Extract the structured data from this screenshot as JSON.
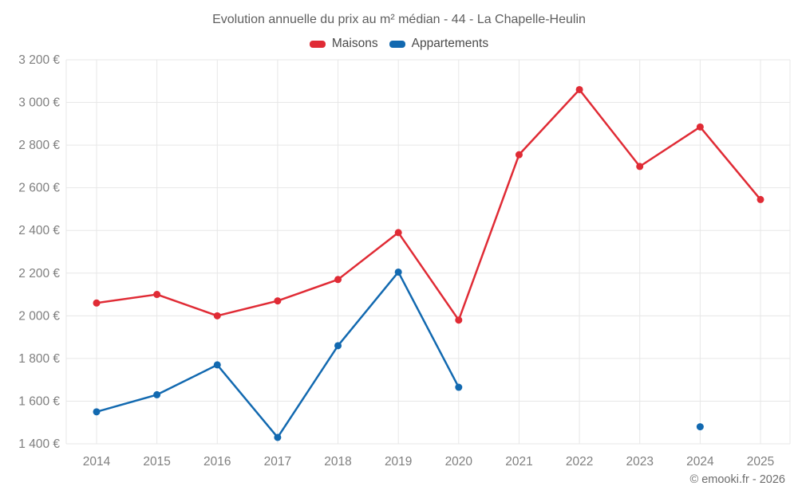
{
  "title": "Evolution annuelle du prix au m² médian - 44 - La Chapelle-Heulin",
  "attribution": "© emooki.fr - 2026",
  "legend": {
    "items": [
      {
        "label": "Maisons",
        "color": "#e02b35"
      },
      {
        "label": "Appartements",
        "color": "#1269b0"
      }
    ]
  },
  "colors": {
    "maisons": "#e02b35",
    "appartements": "#1269b0",
    "grid": "#e7e7e7",
    "axis_text": "#7f7f7f",
    "title_text": "#5f5f5f"
  },
  "chart_data": {
    "type": "line",
    "title": "Evolution annuelle du prix au m² médian - 44 - La Chapelle-Heulin",
    "xlabel": "",
    "ylabel": "",
    "x": [
      2014,
      2015,
      2016,
      2017,
      2018,
      2019,
      2020,
      2021,
      2022,
      2023,
      2024,
      2025
    ],
    "series": [
      {
        "name": "Maisons",
        "color": "#e02b35",
        "values": [
          2060,
          2100,
          2000,
          2070,
          2170,
          2390,
          1980,
          2755,
          3060,
          2700,
          2885,
          2545
        ]
      },
      {
        "name": "Appartements",
        "color": "#1269b0",
        "values": [
          1550,
          1630,
          1770,
          1430,
          1860,
          2205,
          1665,
          null,
          null,
          null,
          1480,
          null
        ]
      }
    ],
    "ylim": [
      1400,
      3200
    ],
    "ytick_step": 200,
    "ytick_suffix": " €",
    "grid": true,
    "legend_position": "top",
    "marker": "circle"
  }
}
